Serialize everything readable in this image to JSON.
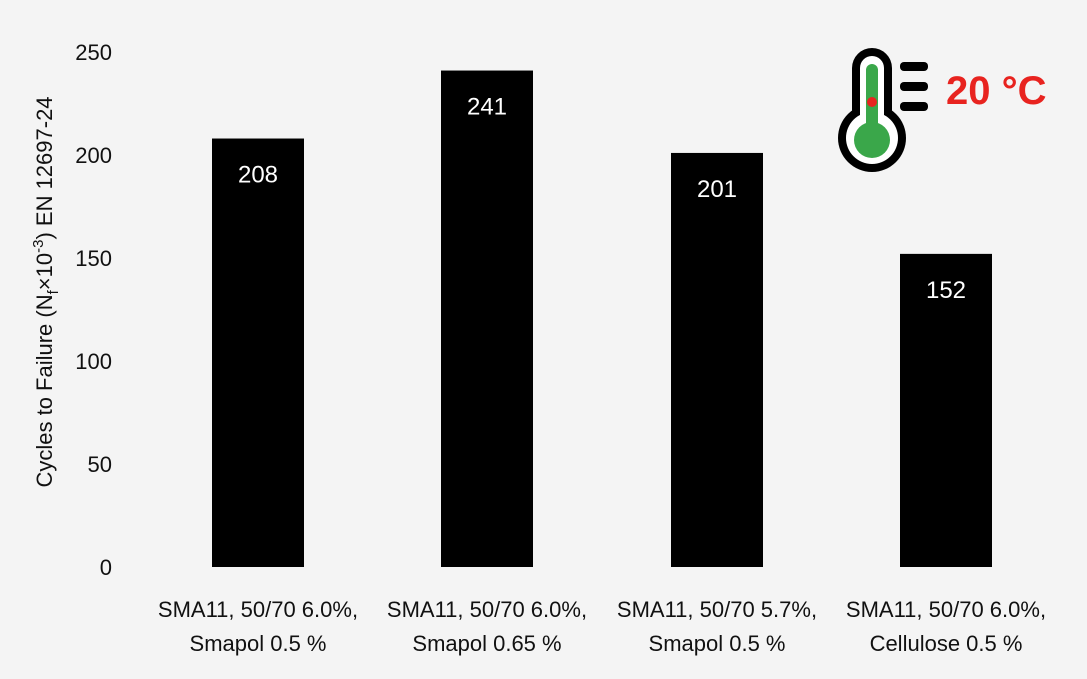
{
  "chart_data": {
    "type": "bar",
    "categories": [
      [
        "SMA11, 50/70 6.0%,",
        "Smapol 0.5 %"
      ],
      [
        "SMA11, 50/70 6.0%,",
        "Smapol 0.65 %"
      ],
      [
        "SMA11, 50/70 5.7%,",
        "Smapol 0.5 %"
      ],
      [
        "SMA11, 50/70 6.0%,",
        "Cellulose 0.5 %"
      ]
    ],
    "values": [
      208,
      241,
      201,
      152
    ],
    "ylabel": {
      "prefix": "Cycles to Failure (N",
      "sub": "f",
      "mid": "×10",
      "sup": "-3",
      "suffix": ") EN 12697-24"
    },
    "ylim": [
      0,
      250
    ],
    "yticks": [
      0,
      50,
      100,
      150,
      200,
      250
    ],
    "grid": false,
    "bar_color": "#000000",
    "bar_label_color": "#ffffff"
  },
  "temperature_badge": {
    "label": "20 °C",
    "icon": "thermometer-icon",
    "label_color": "#e8231f",
    "icon_fill_color": "#3aa74a",
    "icon_outline_color": "#000000",
    "indicator_color": "#e8231f"
  }
}
